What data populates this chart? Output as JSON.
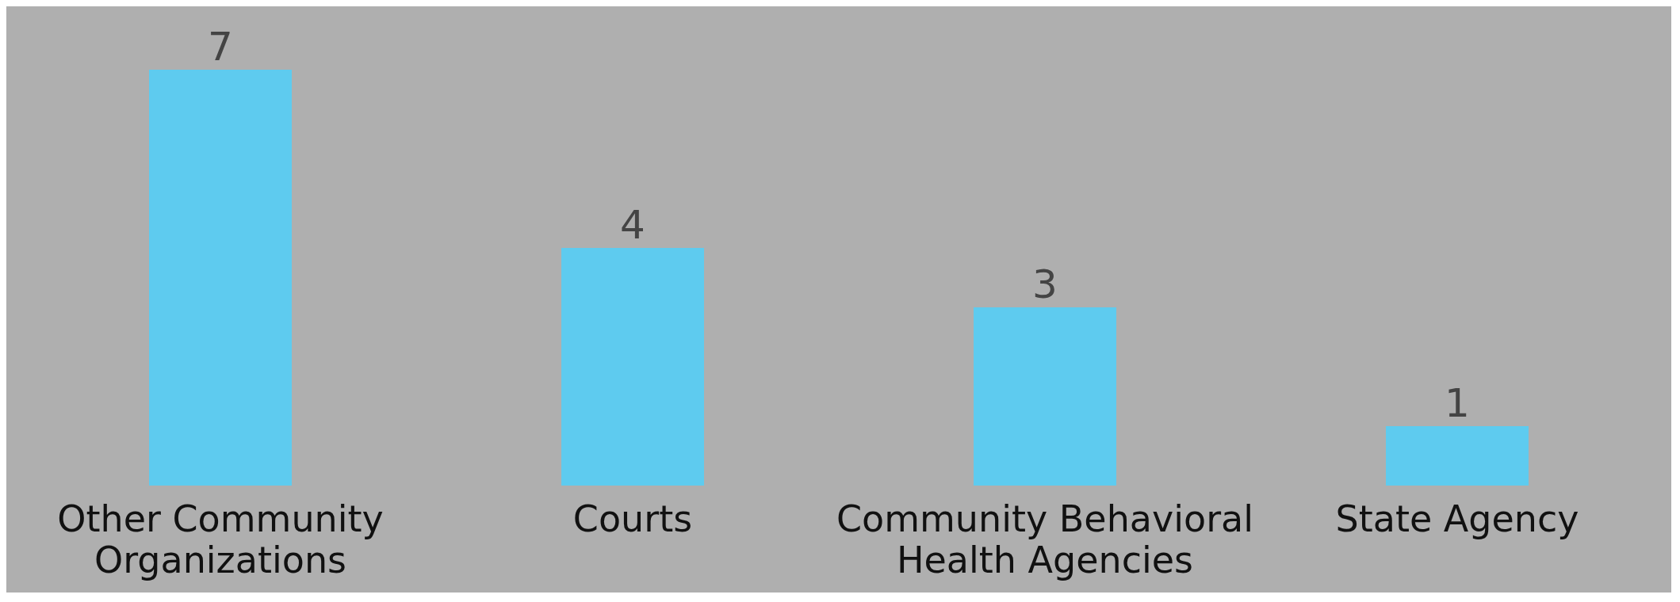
{
  "chart_data": {
    "type": "bar",
    "categories": [
      "Other Community Organizations",
      "Courts",
      "Community Behavioral Health Agencies",
      "State Agency"
    ],
    "values": [
      7,
      4,
      3,
      1
    ],
    "color": "#5ecbef",
    "data_labels": true
  }
}
